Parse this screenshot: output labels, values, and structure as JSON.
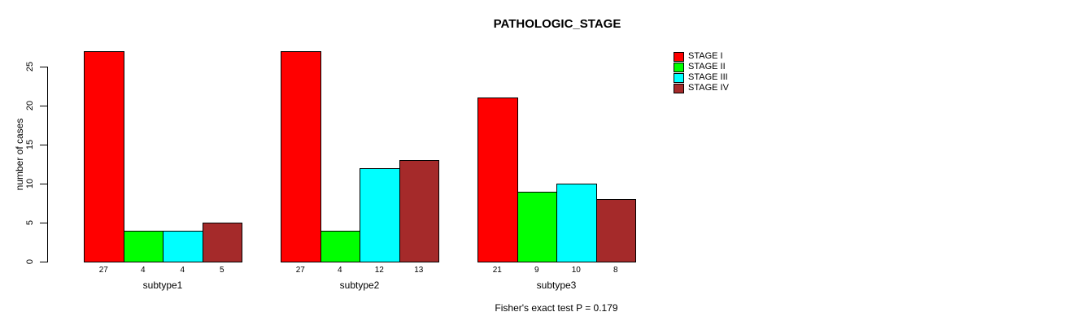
{
  "chart_data": {
    "type": "bar",
    "title": "PATHOLOGIC_STAGE",
    "xlabel": "",
    "ylabel": "number of cases",
    "categories": [
      "subtype1",
      "subtype2",
      "subtype3"
    ],
    "series": [
      {
        "name": "STAGE I",
        "color": "#FF0000",
        "values": [
          27,
          27,
          21
        ]
      },
      {
        "name": "STAGE II",
        "color": "#00FF00",
        "values": [
          4,
          4,
          9
        ]
      },
      {
        "name": "STAGE III",
        "color": "#00FFFF",
        "values": [
          4,
          12,
          10
        ]
      },
      {
        "name": "STAGE IV",
        "color": "#A52A2A",
        "values": [
          5,
          13,
          8
        ]
      }
    ],
    "yticks": [
      0,
      5,
      10,
      15,
      20,
      25
    ],
    "ylim": [
      0,
      27
    ],
    "grid": false,
    "legend_position": "top-right",
    "bar_borders": "#000000",
    "bar_value_labels": true,
    "annotation": "Fisher's exact test P = 0.179"
  }
}
